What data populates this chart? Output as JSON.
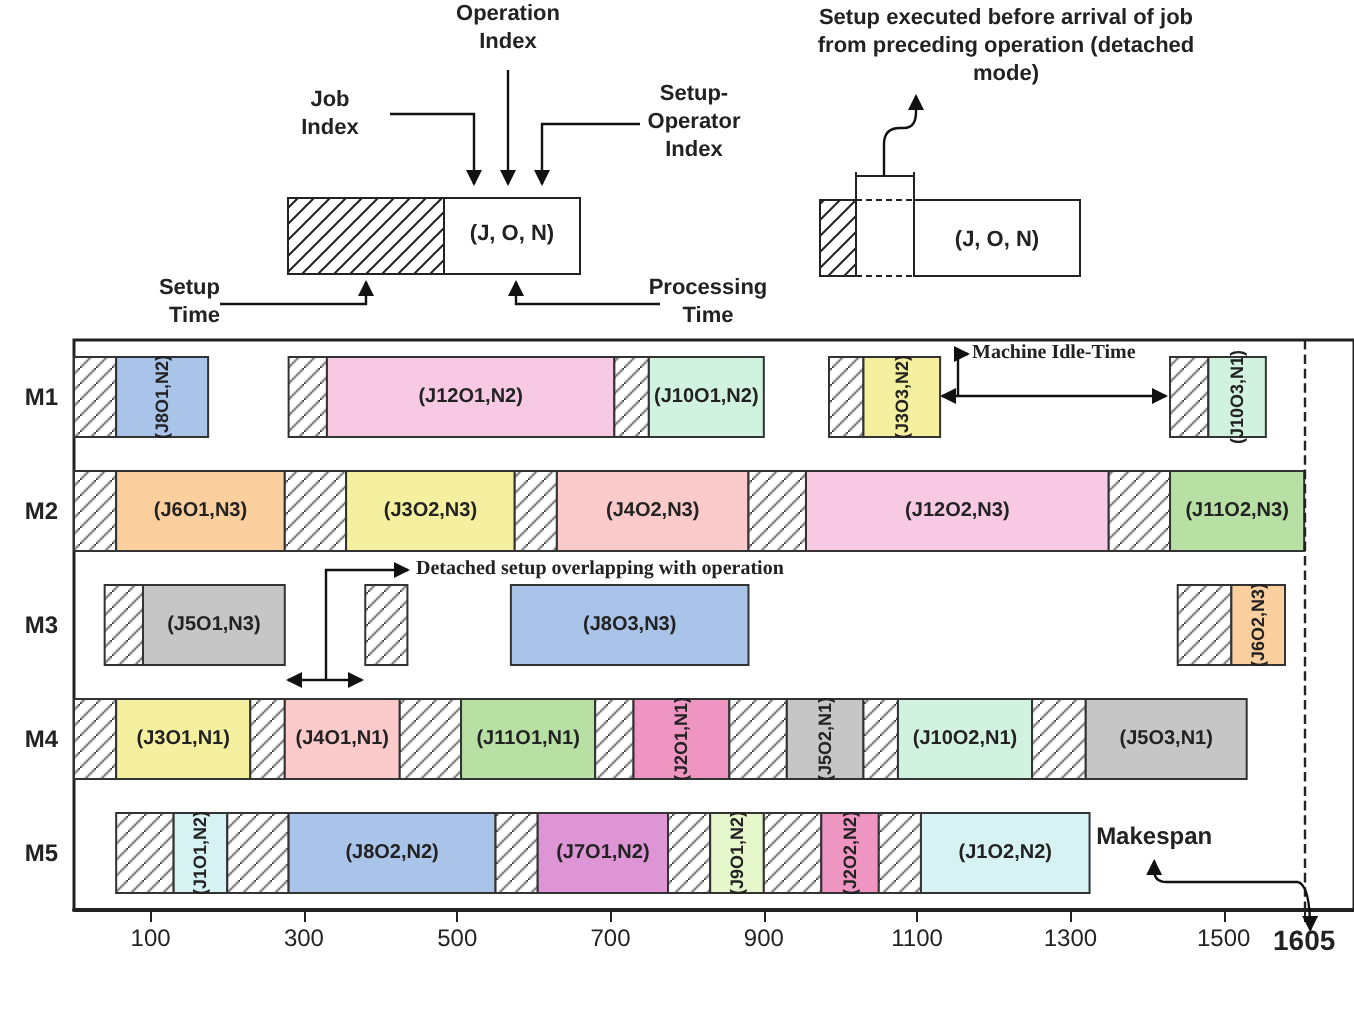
{
  "chart_data": {
    "type": "bar",
    "orientation": "horizontal",
    "categories": [
      "M1",
      "M2",
      "M3",
      "M4",
      "M5"
    ],
    "xlim": [
      0,
      1670
    ],
    "xticks": [
      100,
      300,
      500,
      700,
      900,
      1100,
      1300,
      1500,
      1605
    ],
    "grid": false,
    "series": [
      {
        "color": "#333333",
        "base": [
          0,
          0,
          40,
          0,
          55
        ],
        "values": [
          55,
          55,
          50,
          55,
          75
        ]
      },
      {
        "colors": [
          "#a9c4e8",
          "#fbcf9e",
          "#c6c6c6",
          "#f4f0a0",
          "#d6f2f2"
        ],
        "base": [
          55,
          55,
          90,
          55,
          130
        ],
        "values": [
          120,
          220,
          185,
          175,
          70
        ],
        "value_labels": [
          "(J8O1,N2)",
          "(J6O1,N3)",
          "(J5O1,N3)",
          "(J3O1,N1)",
          "(J1O1,N2)"
        ]
      },
      {
        "color": "#333333",
        "base": [
          280,
          275,
          380,
          230,
          200
        ],
        "values": [
          50,
          80,
          55,
          45,
          80
        ]
      },
      {
        "colors": [
          "#f7c9e2",
          "#f4f0a0",
          "#a9c4e8",
          "#fbcaca",
          "#a9c4e8"
        ],
        "base": [
          330,
          355,
          570,
          275,
          280
        ],
        "values": [
          375,
          220,
          310,
          150,
          270
        ],
        "value_labels": [
          "(J12O1,N2)",
          "(J3O2,N3)",
          "(J8O3,N3)",
          "(J4O1,N1)",
          "(J8O2,N2)"
        ]
      },
      {
        "color": "#333333",
        "base": [
          705,
          575,
          1440,
          425,
          550
        ],
        "values": [
          45,
          55,
          70,
          80,
          55
        ]
      },
      {
        "colors": [
          "#d2f2e0",
          "#fbcaca",
          "#fbcf9e",
          "#b8e0a4",
          "#dd95d6"
        ],
        "base": [
          750,
          630,
          1510,
          505,
          605
        ],
        "values": [
          150,
          250,
          70,
          175,
          170
        ],
        "value_labels": [
          "(J10O1,N2)",
          "(J4O2,N3)",
          "(J6O2,N3)",
          "(J11O1,N1)",
          "(J7O1,N2)"
        ]
      },
      {
        "color": "#333333",
        "base": [
          985,
          880,
          null,
          680,
          775
        ],
        "values": [
          45,
          75,
          null,
          50,
          55
        ]
      },
      {
        "colors": [
          "#f4f0a0",
          "#f7c9e2",
          null,
          "#ef95c2",
          "#e6f7cc"
        ],
        "base": [
          1030,
          955,
          null,
          730,
          830
        ],
        "values": [
          100,
          395,
          null,
          125,
          70
        ],
        "value_labels": [
          "(J3O3,N2)",
          "(J12O2,N3)",
          null,
          "(J2O1,N1)",
          "(J9O1,N2)"
        ]
      },
      {
        "color": "#333333",
        "base": [
          1430,
          1350,
          null,
          855,
          900
        ],
        "values": [
          50,
          80,
          null,
          75,
          75
        ]
      },
      {
        "colors": [
          "#d2f2e0",
          "#b8e0a4",
          null,
          "#c6c6c6",
          "#ef95c2"
        ],
        "base": [
          1480,
          1430,
          null,
          930,
          975
        ],
        "values": [
          75,
          175,
          null,
          100,
          75
        ],
        "value_labels": [
          "(J10O3,N1)",
          "(J11O2,N3)",
          null,
          "(J5O2,N1)",
          "(J2O2,N2)"
        ]
      },
      {
        "color": "#333333",
        "base": [
          null,
          null,
          null,
          1030,
          1050
        ],
        "values": [
          null,
          null,
          null,
          45,
          55
        ]
      },
      {
        "colors": [
          null,
          null,
          null,
          "#d2f2e0",
          "#d6f2f2"
        ],
        "base": [
          null,
          null,
          null,
          1075,
          1105
        ],
        "values": [
          null,
          null,
          null,
          175,
          220
        ],
        "value_labels": [
          null,
          null,
          null,
          "(J10O2,N1)",
          "(J1O2,N2)"
        ]
      },
      {
        "color": "#333333",
        "base": [
          null,
          null,
          null,
          1250,
          null
        ],
        "values": [
          null,
          null,
          null,
          70,
          null
        ]
      },
      {
        "colors": [
          null,
          null,
          null,
          "#c6c6c6",
          null
        ],
        "base": [
          null,
          null,
          null,
          1320,
          null
        ],
        "values": [
          null,
          null,
          null,
          210,
          null
        ],
        "value_labels": [
          null,
          null,
          null,
          "(J5O3,N1)",
          null
        ]
      }
    ],
    "ref_lines": [
      {
        "axis": "x",
        "value": 1605,
        "label": "Makespan",
        "line_style": "dashed"
      }
    ],
    "annotations": [
      "Operation Index",
      "Job Index",
      "Setup-Operator Index",
      "Setup Time",
      "Processing Time",
      "(J, O, N)",
      "Setup executed before arrival of job from preceding operation (detached mode)",
      "(J, O, N)",
      "Machine Idle-Time",
      "Detached setup overlapping with operation"
    ]
  }
}
